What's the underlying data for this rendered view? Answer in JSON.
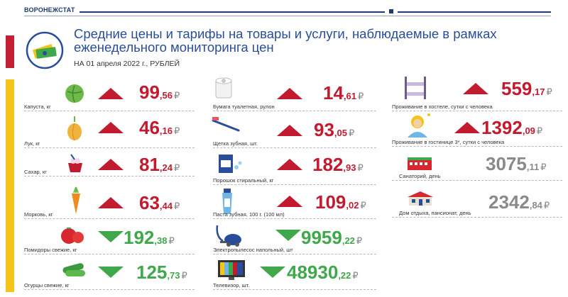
{
  "header": {
    "brand": "ВОРОНЕЖСТАТ",
    "title": "Средние цены и тарифы на товары и услуги, наблюдаемые в рамках еженедельного мониторинга цен",
    "subtitle": "НА 01 апреля  2022 г., РУБЛЕЙ"
  },
  "colors": {
    "up": "#c21a2e",
    "down": "#3ea84a",
    "flat": "#8a8a8a",
    "title": "#2a4d9b"
  },
  "currency": "₽",
  "col1": [
    {
      "label": "Капуста, кг",
      "int": "99",
      "dec": ",56",
      "trend": "up",
      "icon": "cabbage-icon"
    },
    {
      "label": "Лук, кг",
      "int": "46",
      "dec": ",16",
      "trend": "up",
      "icon": "onion-icon"
    },
    {
      "label": "Сахар, кг",
      "int": "81",
      "dec": ",24",
      "trend": "up",
      "icon": "sugar-icon"
    },
    {
      "label": "Морковь, кг",
      "int": "63",
      "dec": ",44",
      "trend": "up",
      "icon": "carrot-icon"
    },
    {
      "label": "Помидоры свежие, кг",
      "int": "192",
      "dec": ",38",
      "trend": "down",
      "icon": "tomato-icon"
    },
    {
      "label": "Огурцы свежие, кг",
      "int": "125",
      "dec": ",73",
      "trend": "down",
      "icon": "cucumber-icon"
    }
  ],
  "col2": [
    {
      "label": "Бумага туалетная, рулон",
      "int": "14",
      "dec": ",61",
      "trend": "up",
      "icon": "toilet-paper-icon"
    },
    {
      "label": "Щетка зубная, шт.",
      "int": "93",
      "dec": ",05",
      "trend": "up",
      "icon": "toothbrush-icon"
    },
    {
      "label": "Порошок стиральный, кг",
      "int": "182",
      "dec": ",93",
      "trend": "up",
      "icon": "washing-powder-icon"
    },
    {
      "label": "Паста зубная, 100 г. (100 мл)",
      "int": "109",
      "dec": ",02",
      "trend": "up",
      "icon": "toothpaste-icon"
    },
    {
      "label": "Электропылесос напольный, шт",
      "int": "9959",
      "dec": ",22",
      "trend": "down",
      "icon": "vacuum-icon"
    },
    {
      "label": "Телевизор, шт.",
      "int": "48930",
      "dec": ",22",
      "trend": "down",
      "icon": "tv-icon"
    }
  ],
  "col3": [
    {
      "label": "Проживание в хостеле, сутки с человека",
      "int": "559",
      "dec": ",17",
      "trend": "up",
      "icon": "bunk-bed-icon"
    },
    {
      "label": "Проживание в гостинице 3*, сутки с человека",
      "int": "1392",
      "dec": ",09",
      "trend": "up",
      "icon": "hotel-guest-icon"
    },
    {
      "label": "Санаторий, день",
      "int": "3075",
      "dec": ",11",
      "trend": "flat",
      "icon": "sanatorium-icon"
    },
    {
      "label": "Дом отдыха, пансионат, день",
      "int": "2342",
      "dec": ",84",
      "trend": "flat",
      "icon": "resort-icon"
    }
  ]
}
